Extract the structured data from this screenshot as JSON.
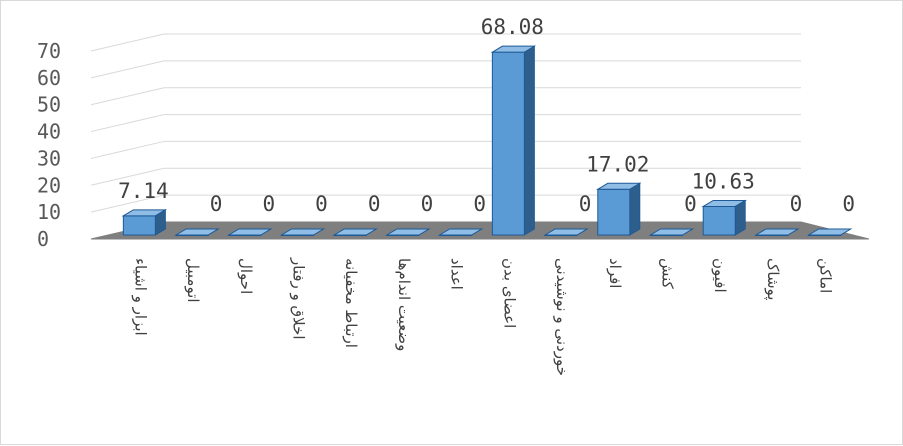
{
  "chart_data": {
    "type": "bar",
    "style": "3d-clustered-column",
    "categories": [
      "ابزار و اشیاء",
      "اتومبیل",
      "احوال",
      "اخلاق و رفتار",
      "ارتباط مخفیانه",
      "وضعیت اندام‌ها",
      "اعداد",
      "اعضای بدن",
      "خوردنی و نوشیدنی",
      "افراد",
      "کنش",
      "افیون",
      "پوشاک",
      "اماکن"
    ],
    "values": [
      7.14,
      0,
      0,
      0,
      0,
      0,
      0,
      68.08,
      0,
      17.02,
      0,
      10.63,
      0,
      0
    ],
    "value_labels": [
      "7.14",
      "0",
      "0",
      "0",
      "0",
      "0",
      "0",
      "68.08",
      "0",
      "17.02",
      "0",
      "10.63",
      "0",
      "0"
    ],
    "y_ticks": [
      "0",
      "10",
      "20",
      "30",
      "40",
      "50",
      "60",
      "70"
    ],
    "ylim": [
      0,
      70
    ],
    "title": "",
    "xlabel": "",
    "ylabel": "",
    "grid": true,
    "legend": "none",
    "colors": {
      "bar": "#5b9bd5",
      "bar_side": "#2e5f8c",
      "bar_top": "#8fbde6",
      "bar_outline": "#1f5a96",
      "grid": "#d9d9d9",
      "floor": "#7f7f7f"
    }
  }
}
